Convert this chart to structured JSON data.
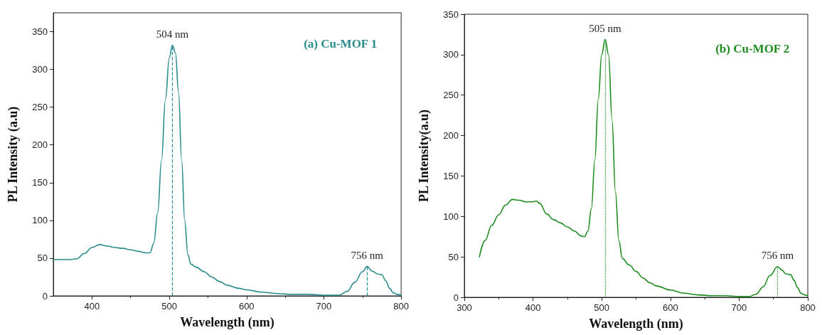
{
  "chart_data": [
    {
      "type": "line",
      "title": "(a) Cu-MOF 1",
      "xlabel": "Wavelength (nm)",
      "ylabel": "PL Intensity (a.u)",
      "xlim": [
        350,
        800
      ],
      "xticks": [
        400,
        500,
        600,
        700,
        800
      ],
      "ylim": [
        0,
        375
      ],
      "yticks": [
        0,
        50,
        100,
        150,
        200,
        250,
        300,
        350
      ],
      "grid": false,
      "marker": "none",
      "line_style": "solid",
      "series": [
        {
          "color": "#2a8c8c",
          "x": [
            350,
            360,
            370,
            380,
            390,
            400,
            410,
            420,
            430,
            440,
            450,
            460,
            470,
            475,
            480,
            485,
            490,
            495,
            500,
            504,
            508,
            512,
            516,
            520,
            524,
            528,
            535,
            545,
            555,
            565,
            575,
            590,
            600,
            620,
            640,
            660,
            680,
            700,
            720,
            730,
            740,
            750,
            756,
            762,
            770,
            775,
            780,
            785,
            790,
            795,
            800
          ],
          "values": [
            48,
            48,
            48,
            49,
            56,
            64,
            68,
            66,
            64,
            63,
            61,
            59,
            57,
            57,
            70,
            110,
            180,
            260,
            315,
            332,
            322,
            270,
            180,
            100,
            55,
            42,
            38,
            32,
            25,
            19,
            14,
            10,
            8,
            5,
            3,
            2,
            2,
            1,
            1,
            6,
            18,
            32,
            39,
            33,
            29,
            28,
            20,
            10,
            4,
            2,
            1
          ]
        }
      ],
      "ref_lines": [
        {
          "axis": "x",
          "value": 504,
          "label": "504 nm",
          "color": "#2a8c8c",
          "line_style": "dashed"
        },
        {
          "axis": "x",
          "value": 756,
          "label": "756 nm",
          "color": "#2a8c8c",
          "line_style": "dashed"
        }
      ]
    },
    {
      "type": "line",
      "title": "(b) Cu-MOF 2",
      "xlabel": "Wavelength (nm)",
      "ylabel": "PL Intensity(a.u)",
      "xlim": [
        300,
        800
      ],
      "xticks": [
        300,
        400,
        500,
        600,
        700,
        800
      ],
      "ylim": [
        0,
        350
      ],
      "yticks": [
        0,
        50,
        100,
        150,
        200,
        250,
        300,
        350
      ],
      "grid": false,
      "marker": "none",
      "line_style": "solid",
      "series": [
        {
          "color": "#1e8c1e",
          "x": [
            322,
            330,
            340,
            350,
            360,
            370,
            380,
            390,
            398,
            405,
            410,
            420,
            430,
            440,
            450,
            460,
            470,
            475,
            480,
            485,
            490,
            495,
            500,
            505,
            510,
            515,
            520,
            525,
            530,
            540,
            550,
            560,
            570,
            580,
            600,
            620,
            640,
            660,
            680,
            700,
            715,
            725,
            735,
            745,
            756,
            762,
            768,
            775,
            780,
            785,
            790,
            795,
            800
          ],
          "values": [
            50,
            70,
            89,
            102,
            114,
            121,
            120,
            118,
            118,
            119,
            116,
            103,
            96,
            92,
            87,
            82,
            76,
            75,
            82,
            110,
            170,
            245,
            300,
            319,
            300,
            220,
            130,
            70,
            48,
            40,
            32,
            24,
            18,
            14,
            9,
            5,
            3,
            2,
            2,
            1,
            1,
            4,
            13,
            27,
            38,
            34,
            29,
            28,
            21,
            12,
            5,
            3,
            2
          ]
        }
      ],
      "ref_lines": [
        {
          "axis": "x",
          "value": 505,
          "label": "505 nm",
          "color": "#1e8c1e",
          "line_style": "dotted"
        },
        {
          "axis": "x",
          "value": 756,
          "label": "756 nm",
          "color": "#1e8c1e",
          "line_style": "dotted"
        }
      ]
    }
  ]
}
